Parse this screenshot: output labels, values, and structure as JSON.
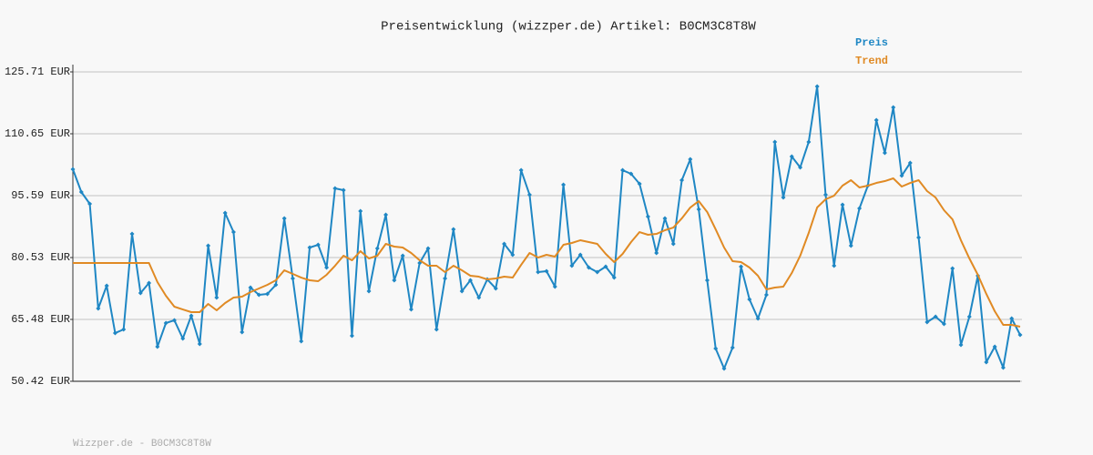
{
  "chart_data": {
    "type": "line",
    "title": "Preisentwicklung (wizzper.de) Artikel: B0CM3C8T8W",
    "footer": "Wizzper.de - B0CM3C8T8W",
    "ylim": [
      50.42,
      125.71
    ],
    "yticks": [
      {
        "value": 50.42,
        "label": "50.42 EUR"
      },
      {
        "value": 65.48,
        "label": "65.48 EUR"
      },
      {
        "value": 80.53,
        "label": "80.53 EUR"
      },
      {
        "value": 95.59,
        "label": "95.59 EUR"
      },
      {
        "value": 110.65,
        "label": "110.65 EUR"
      },
      {
        "value": 125.71,
        "label": "125.71 EUR"
      }
    ],
    "grid": true,
    "legend": "top-right",
    "series": [
      {
        "name": "Preis",
        "color": "#1f87c4",
        "marker": "diamond",
        "values": [
          102.01,
          96.48,
          93.6,
          68.13,
          73.67,
          62.16,
          63.04,
          86.29,
          71.9,
          74.33,
          58.83,
          64.59,
          65.26,
          60.83,
          66.36,
          59.5,
          83.41,
          70.79,
          91.38,
          86.73,
          62.38,
          73.23,
          71.46,
          71.68,
          73.89,
          90.06,
          75.44,
          60.16,
          82.97,
          83.63,
          78.1,
          97.36,
          96.92,
          61.49,
          91.83,
          72.34,
          82.75,
          90.94,
          75.0,
          80.98,
          67.91,
          79.21,
          82.75,
          63.04,
          75.44,
          87.4,
          72.34,
          75.0,
          70.79,
          75.22,
          73.01,
          83.86,
          81.2,
          101.79,
          95.81,
          76.99,
          77.21,
          73.45,
          98.25,
          78.54,
          81.2,
          78.1,
          76.99,
          78.32,
          75.66,
          101.79,
          100.91,
          98.47,
          90.5,
          81.64,
          90.06,
          83.86,
          99.36,
          104.45,
          92.27,
          75.0,
          58.39,
          53.52,
          58.61,
          78.32,
          70.35,
          65.7,
          71.46,
          108.66,
          95.15,
          105.11,
          102.46,
          108.66,
          122.16,
          95.81,
          78.54,
          93.38,
          83.41,
          92.49,
          98.03,
          113.97,
          106.0,
          117.07,
          100.46,
          103.56,
          85.41,
          64.81,
          66.14,
          64.37,
          77.88,
          59.28,
          66.14,
          76.11,
          55.07,
          58.83,
          53.74,
          65.7,
          61.71
        ]
      },
      {
        "name": "Trend",
        "color": "#e08a24",
        "values": [
          79.21,
          79.21,
          79.21,
          79.21,
          79.21,
          79.21,
          79.21,
          79.21,
          79.21,
          79.21,
          74.56,
          71.23,
          68.58,
          67.91,
          67.25,
          67.25,
          69.24,
          67.69,
          69.46,
          70.79,
          71.01,
          72.12,
          73.01,
          73.89,
          75.0,
          77.43,
          76.55,
          75.66,
          75.0,
          74.78,
          76.33,
          78.54,
          80.98,
          79.87,
          82.08,
          80.31,
          80.98,
          83.86,
          83.19,
          82.97,
          81.64,
          79.87,
          78.54,
          78.54,
          76.99,
          78.54,
          77.43,
          76.11,
          75.88,
          75.22,
          75.44,
          75.88,
          75.66,
          78.76,
          81.64,
          80.53,
          81.2,
          80.76,
          83.63,
          84.08,
          84.74,
          84.3,
          83.86,
          81.42,
          79.43,
          81.42,
          84.3,
          86.73,
          86.07,
          86.29,
          87.18,
          87.84,
          90.06,
          92.71,
          94.26,
          91.61,
          87.4,
          82.97,
          79.65,
          79.43,
          78.1,
          76.11,
          72.78,
          73.23,
          73.45,
          76.77,
          80.98,
          86.51,
          92.71,
          94.71,
          95.59,
          98.03,
          99.36,
          97.58,
          98.03,
          98.69,
          99.13,
          99.8,
          97.81,
          98.69,
          99.36,
          96.7,
          95.15,
          92.05,
          89.83,
          84.74,
          80.31,
          76.33,
          71.68,
          67.47,
          64.15,
          64.15,
          63.71
        ]
      }
    ]
  }
}
